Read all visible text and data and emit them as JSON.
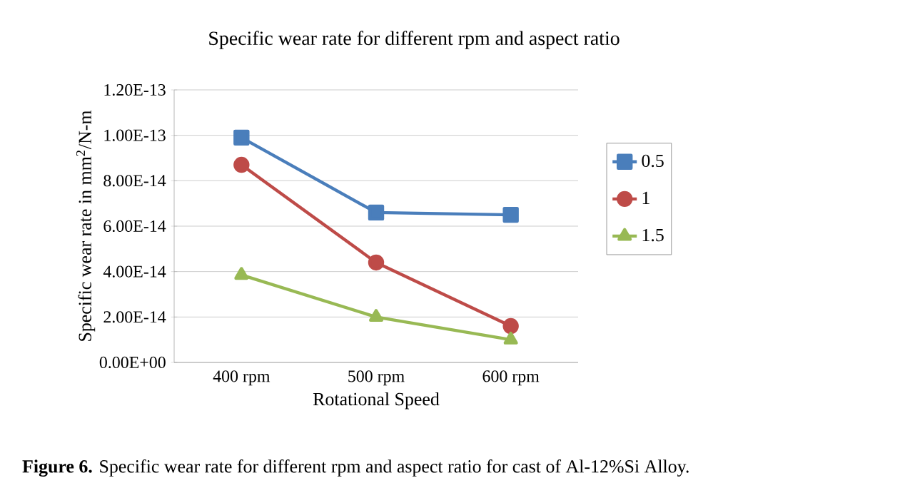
{
  "chart_data": {
    "type": "line",
    "title": "Specific wear rate for different rpm and aspect ratio",
    "xlabel": "Rotational Speed",
    "ylabel": "Specific wear rate in mm$^{2}$/N-m",
    "categories": [
      "400 rpm",
      "500 rpm",
      "600 rpm"
    ],
    "series": [
      {
        "name": "0.5",
        "color": "#4a7ebb",
        "marker": "square",
        "values": [
          9.9e-14,
          6.6e-14,
          6.5e-14
        ]
      },
      {
        "name": "1",
        "color": "#be4b48",
        "marker": "circle",
        "values": [
          8.7e-14,
          4.4e-14,
          1.6e-14
        ]
      },
      {
        "name": "1.5",
        "color": "#98b954",
        "marker": "triangle",
        "values": [
          3.85e-14,
          2e-14,
          1e-14
        ]
      }
    ],
    "ylim": [
      0,
      1.2e-13
    ],
    "yticks": [
      {
        "value": 0,
        "label": "0.00E+00"
      },
      {
        "value": 2e-14,
        "label": "2.00E-14"
      },
      {
        "value": 4e-14,
        "label": "4.00E-14"
      },
      {
        "value": 6e-14,
        "label": "6.00E-14"
      },
      {
        "value": 8e-14,
        "label": "8.00E-14"
      },
      {
        "value": 1e-13,
        "label": "1.00E-13"
      },
      {
        "value": 1.2e-13,
        "label": "1.20E-13"
      }
    ],
    "grid": "y",
    "legend": "right",
    "line_style": "solid",
    "annotations": [
      "**Figure 6.** Specific wear rate for different rpm and aspect ratio for cast of Al-12%Si Alloy."
    ]
  }
}
